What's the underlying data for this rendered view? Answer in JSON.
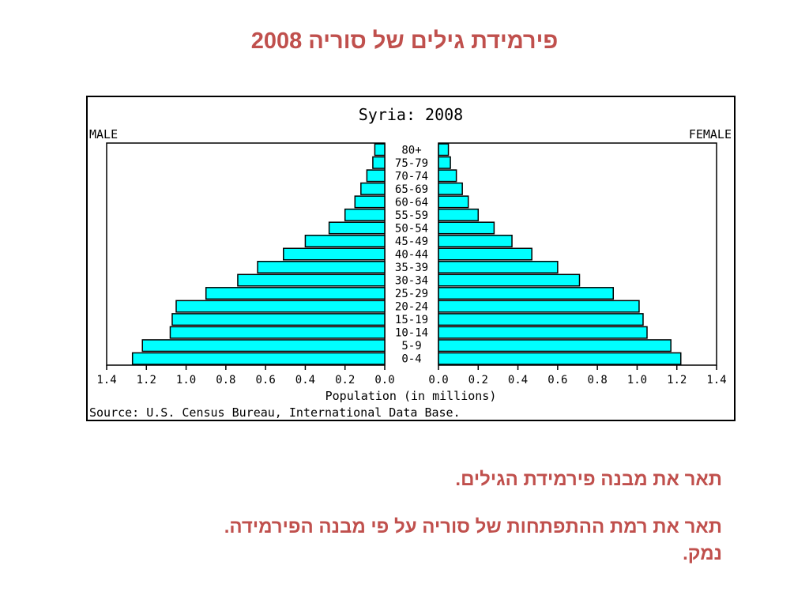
{
  "slide": {
    "title": "פירמידת גילים של סוריה 2008",
    "question1": "תאר את מבנה פירמידת הגילים.",
    "question2": "תאר את רמת ההתפתחות של סוריה על פי מבנה הפירמידה. נמק."
  },
  "chart_data": {
    "type": "bar",
    "orientation": "horizontal-pyramid",
    "title": "Syria: 2008",
    "left_label": "MALE",
    "right_label": "FEMALE",
    "xlabel": "Population (in millions)",
    "source": "Source: U.S. Census Bureau, International Data Base.",
    "xlim": [
      0,
      1.4
    ],
    "x_ticks_left": [
      "1.4",
      "1.2",
      "1.0",
      "0.8",
      "0.6",
      "0.4",
      "0.2",
      "0.0"
    ],
    "x_ticks_right": [
      "0.0",
      "0.2",
      "0.4",
      "0.6",
      "0.8",
      "1.0",
      "1.2",
      "1.4"
    ],
    "tick_values": [
      0,
      0.2,
      0.4,
      0.6,
      0.8,
      1.0,
      1.2,
      1.4
    ],
    "categories": [
      "80+",
      "75-79",
      "70-74",
      "65-69",
      "60-64",
      "55-59",
      "50-54",
      "45-49",
      "40-44",
      "35-39",
      "30-34",
      "25-29",
      "20-24",
      "15-19",
      "10-14",
      "5-9",
      "0-4"
    ],
    "series": [
      {
        "name": "MALE",
        "values": [
          0.05,
          0.06,
          0.09,
          0.12,
          0.15,
          0.2,
          0.28,
          0.4,
          0.51,
          0.64,
          0.74,
          0.9,
          1.05,
          1.07,
          1.08,
          1.22,
          1.27
        ]
      },
      {
        "name": "FEMALE",
        "values": [
          0.05,
          0.06,
          0.09,
          0.12,
          0.15,
          0.2,
          0.28,
          0.37,
          0.47,
          0.6,
          0.71,
          0.88,
          1.01,
          1.03,
          1.05,
          1.17,
          1.22
        ]
      }
    ],
    "bar_color": "#00ffff",
    "grid": false
  }
}
